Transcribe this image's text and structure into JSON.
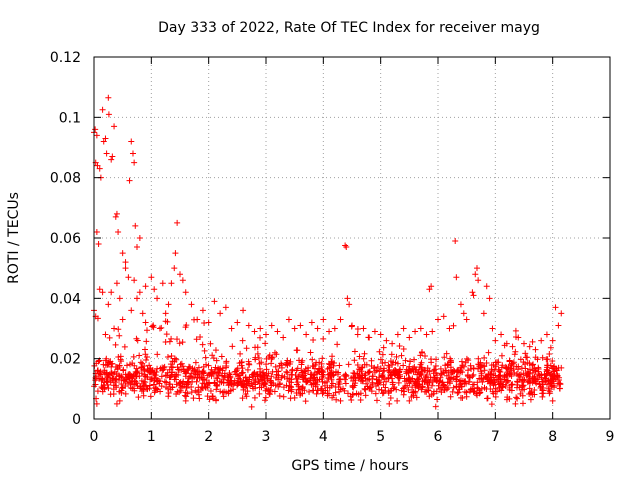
{
  "colors": {
    "series": "#ff0000",
    "grid": "#a0a0a0",
    "axis": "#000000"
  },
  "chart_data": {
    "type": "scatter",
    "title": "Day 333 of 2022, Rate Of TEC Index for receiver mayg",
    "xlabel": "GPS time / hours",
    "ylabel": "ROTI / TECUs",
    "xlim": [
      0,
      9
    ],
    "ylim": [
      0,
      0.12
    ],
    "xticks": [
      0,
      1,
      2,
      3,
      4,
      5,
      6,
      7,
      8,
      9
    ],
    "xtick_labels": [
      "0",
      "1",
      "2",
      "3",
      "4",
      "5",
      "6",
      "7",
      "8",
      "9"
    ],
    "yticks": [
      0,
      0.02,
      0.04,
      0.06,
      0.08,
      0.1,
      0.12
    ],
    "ytick_labels": [
      "0",
      "0.02",
      "0.04",
      "0.06",
      "0.08",
      "0.1",
      "0.12"
    ],
    "grid": true,
    "marker": "+",
    "series": [
      {
        "name": "ROTI",
        "points": [
          [
            0.0,
            0.095
          ],
          [
            0.02,
            0.096
          ],
          [
            0.05,
            0.094
          ],
          [
            0.03,
            0.085
          ],
          [
            0.06,
            0.084
          ],
          [
            0.1,
            0.083
          ],
          [
            0.12,
            0.08
          ],
          [
            0.15,
            0.1025
          ],
          [
            0.17,
            0.092
          ],
          [
            0.2,
            0.093
          ],
          [
            0.22,
            0.088
          ],
          [
            0.25,
            0.1065
          ],
          [
            0.26,
            0.101
          ],
          [
            0.3,
            0.086
          ],
          [
            0.32,
            0.087
          ],
          [
            0.35,
            0.097
          ],
          [
            0.38,
            0.067
          ],
          [
            0.4,
            0.068
          ],
          [
            0.42,
            0.062
          ],
          [
            0.5,
            0.055
          ],
          [
            0.55,
            0.052
          ],
          [
            0.62,
            0.079
          ],
          [
            0.65,
            0.092
          ],
          [
            0.68,
            0.088
          ],
          [
            0.7,
            0.085
          ],
          [
            0.72,
            0.064
          ],
          [
            0.75,
            0.057
          ],
          [
            0.8,
            0.06
          ],
          [
            0.05,
            0.062
          ],
          [
            0.08,
            0.058
          ],
          [
            0.1,
            0.043
          ],
          [
            0.15,
            0.042
          ],
          [
            0.0,
            0.036
          ],
          [
            0.03,
            0.034
          ],
          [
            0.25,
            0.038
          ],
          [
            0.3,
            0.042
          ],
          [
            0.4,
            0.045
          ],
          [
            0.45,
            0.04
          ],
          [
            0.55,
            0.05
          ],
          [
            0.6,
            0.047
          ],
          [
            0.7,
            0.046
          ],
          [
            0.8,
            0.042
          ],
          [
            0.9,
            0.044
          ],
          [
            1.0,
            0.047
          ],
          [
            1.05,
            0.043
          ],
          [
            1.1,
            0.04
          ],
          [
            1.2,
            0.045
          ],
          [
            1.3,
            0.038
          ],
          [
            1.4,
            0.05
          ],
          [
            1.45,
            0.065
          ],
          [
            1.5,
            0.048
          ],
          [
            1.55,
            0.046
          ],
          [
            1.6,
            0.042
          ],
          [
            1.42,
            0.055
          ],
          [
            1.35,
            0.045
          ],
          [
            1.25,
            0.035
          ],
          [
            1.15,
            0.03
          ],
          [
            0.9,
            0.032
          ],
          [
            0.85,
            0.035
          ],
          [
            0.75,
            0.04
          ],
          [
            0.65,
            0.036
          ],
          [
            0.5,
            0.033
          ],
          [
            0.35,
            0.03
          ],
          [
            0.2,
            0.028
          ],
          [
            1.7,
            0.038
          ],
          [
            1.8,
            0.033
          ],
          [
            1.9,
            0.036
          ],
          [
            2.0,
            0.032
          ],
          [
            2.1,
            0.039
          ],
          [
            2.2,
            0.035
          ],
          [
            2.3,
            0.037
          ],
          [
            2.4,
            0.03
          ],
          [
            2.5,
            0.032
          ],
          [
            2.6,
            0.036
          ],
          [
            2.7,
            0.031
          ],
          [
            2.8,
            0.029
          ],
          [
            2.9,
            0.03
          ],
          [
            3.0,
            0.028
          ],
          [
            3.1,
            0.031
          ],
          [
            3.2,
            0.029
          ],
          [
            3.3,
            0.027
          ],
          [
            3.4,
            0.033
          ],
          [
            3.5,
            0.03
          ],
          [
            3.6,
            0.031
          ],
          [
            3.7,
            0.028
          ],
          [
            3.8,
            0.032
          ],
          [
            3.9,
            0.03
          ],
          [
            4.0,
            0.033
          ],
          [
            4.1,
            0.029
          ],
          [
            4.2,
            0.03
          ],
          [
            4.3,
            0.033
          ],
          [
            4.38,
            0.0575
          ],
          [
            4.4,
            0.057
          ],
          [
            4.42,
            0.04
          ],
          [
            4.45,
            0.038
          ],
          [
            4.5,
            0.031
          ],
          [
            4.6,
            0.028
          ],
          [
            4.7,
            0.03
          ],
          [
            4.8,
            0.027
          ],
          [
            4.9,
            0.029
          ],
          [
            5.0,
            0.028
          ],
          [
            5.1,
            0.026
          ],
          [
            5.2,
            0.025
          ],
          [
            5.3,
            0.028
          ],
          [
            5.4,
            0.03
          ],
          [
            5.5,
            0.027
          ],
          [
            5.6,
            0.029
          ],
          [
            5.7,
            0.03
          ],
          [
            5.8,
            0.028
          ],
          [
            5.85,
            0.043
          ],
          [
            5.88,
            0.044
          ],
          [
            5.9,
            0.029
          ],
          [
            6.0,
            0.033
          ],
          [
            6.1,
            0.034
          ],
          [
            6.2,
            0.03
          ],
          [
            6.3,
            0.059
          ],
          [
            6.32,
            0.047
          ],
          [
            6.4,
            0.038
          ],
          [
            6.45,
            0.035
          ],
          [
            6.5,
            0.033
          ],
          [
            6.6,
            0.042
          ],
          [
            6.62,
            0.041
          ],
          [
            6.65,
            0.048
          ],
          [
            6.68,
            0.05
          ],
          [
            6.7,
            0.046
          ],
          [
            6.8,
            0.035
          ],
          [
            6.85,
            0.044
          ],
          [
            6.9,
            0.04
          ],
          [
            6.95,
            0.03
          ],
          [
            7.0,
            0.026
          ],
          [
            7.1,
            0.028
          ],
          [
            7.2,
            0.025
          ],
          [
            7.3,
            0.024
          ],
          [
            7.4,
            0.027
          ],
          [
            7.5,
            0.025
          ],
          [
            7.6,
            0.024
          ],
          [
            7.7,
            0.023
          ],
          [
            7.8,
            0.026
          ],
          [
            7.9,
            0.028
          ],
          [
            8.0,
            0.026
          ],
          [
            8.05,
            0.037
          ],
          [
            8.1,
            0.031
          ],
          [
            8.15,
            0.035
          ],
          [
            0.05,
            0.005
          ],
          [
            0.4,
            0.005
          ],
          [
            0.45,
            0.006
          ],
          [
            2.75,
            0.004
          ],
          [
            1.6,
            0.006
          ],
          [
            3.5,
            0.007
          ],
          [
            4.3,
            0.006
          ],
          [
            5.15,
            0.005
          ],
          [
            5.5,
            0.006
          ],
          [
            6.4,
            0.007
          ],
          [
            7.35,
            0.005
          ],
          [
            8.0,
            0.006
          ]
        ],
        "band": {
          "x_range": [
            0,
            8.15
          ],
          "center": 0.0135,
          "spread": 0.0045
        }
      }
    ]
  }
}
